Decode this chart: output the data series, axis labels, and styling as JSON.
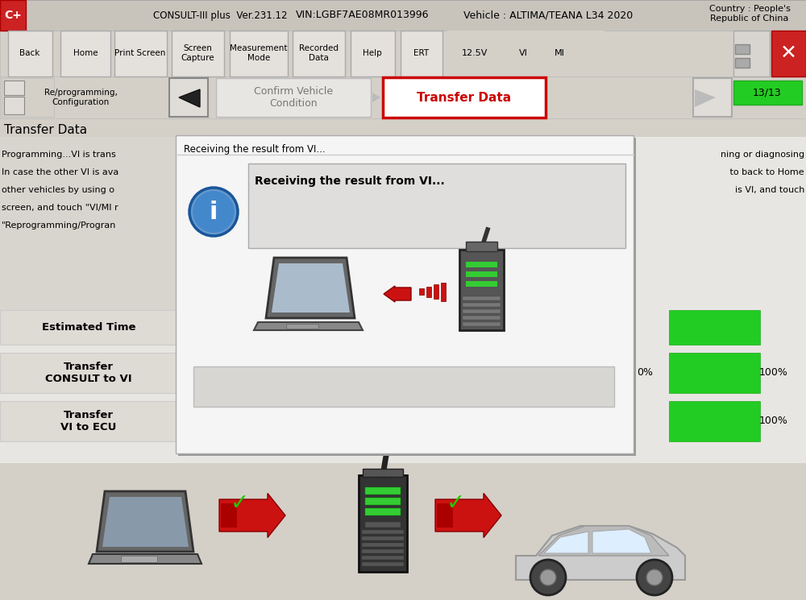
{
  "consult_version": "CONSULT-III plus  Ver.231.12",
  "vin_text": "VIN:LGBF7AE08MR013996",
  "vehicle_text": "Vehicle : ALTIMA/TEANA L34 2020",
  "country_text": "Country : People's\nRepublic of China",
  "step_label1": "Re/programming,\nConfiguration",
  "step_label2": "Confirm Vehicle\nCondition",
  "step_label3": "Transfer Data",
  "step_count": "13/13",
  "section_title": "Transfer Data",
  "dialog_header": "Receiving the result from VI...",
  "dialog_body": "Receiving the result from VI...",
  "left_texts": [
    "Programming...VI is trans",
    "In case the other VI is ava",
    "other vehicles by using o",
    "screen, and touch \"VI/MI r",
    "\"Reprogramming/Progran"
  ],
  "right_texts": [
    "ning or diagnosing",
    " to back to Home",
    "is VI, and touch"
  ],
  "row_label_0": "Estimated Time",
  "row_label_1": "Transfer\nCONSULT to VI",
  "row_label_2": "Transfer\nVI to ECU",
  "pct_consult": "0%",
  "pct_100_1": "100%",
  "pct_100_2": "100%",
  "bg": "#d4d0c8",
  "green": "#22cc22",
  "red_btn": "#cc0000"
}
